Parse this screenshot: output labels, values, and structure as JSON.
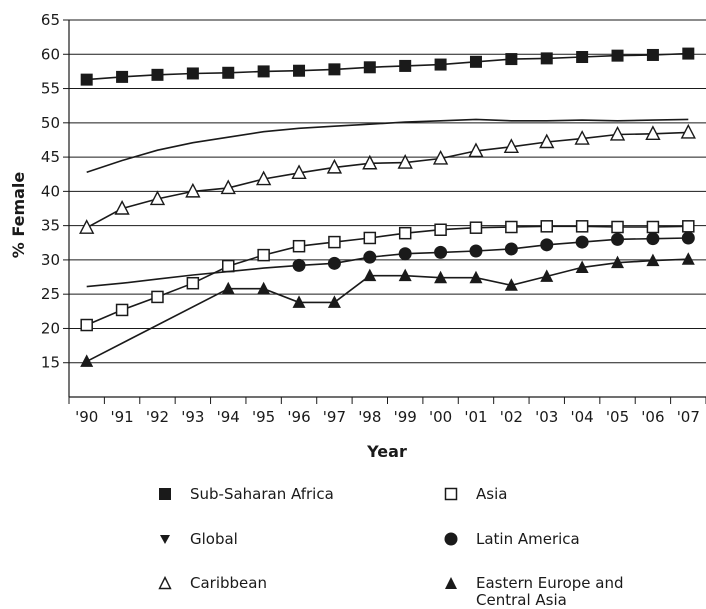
{
  "chart_data": {
    "type": "line",
    "xlabel": "Year",
    "ylabel": "% Female",
    "categories": [
      "'90",
      "'91",
      "'92",
      "'93",
      "'94",
      "'95",
      "'96",
      "'97",
      "'98",
      "'99",
      "'00",
      "'01",
      "'02",
      "'03",
      "'04",
      "'05",
      "'06",
      "'07"
    ],
    "ylim": [
      10,
      65
    ],
    "yticks": [
      15,
      20,
      25,
      30,
      35,
      40,
      45,
      50,
      55,
      60,
      65
    ],
    "grid": "horizontal",
    "legend_position": "bottom",
    "series": [
      {
        "name": "Sub-Saharan Africa",
        "marker": "filled-square",
        "values": [
          56.3,
          56.7,
          57.0,
          57.2,
          57.3,
          57.5,
          57.6,
          57.8,
          58.1,
          58.3,
          58.5,
          58.9,
          59.3,
          59.4,
          59.6,
          59.8,
          59.9,
          60.1
        ]
      },
      {
        "name": "Asia",
        "marker": "open-square",
        "values": [
          20.5,
          22.7,
          24.6,
          26.6,
          29.1,
          30.7,
          32.0,
          32.6,
          33.2,
          33.9,
          34.4,
          34.7,
          34.8,
          34.9,
          34.9,
          34.8,
          34.8,
          34.9
        ]
      },
      {
        "name": "Global",
        "marker": "none",
        "values": [
          42.8,
          44.5,
          46.0,
          47.1,
          47.9,
          48.7,
          49.2,
          49.5,
          49.8,
          50.1,
          50.3,
          50.5,
          50.3,
          50.3,
          50.4,
          50.3,
          50.4,
          50.5
        ]
      },
      {
        "name": "Latin America",
        "marker": "filled-circle",
        "values": [
          26.1,
          26.6,
          27.2,
          27.8,
          28.3,
          28.8,
          29.2,
          29.5,
          30.4,
          30.9,
          31.1,
          31.3,
          31.6,
          32.2,
          32.6,
          33.0,
          33.1,
          33.2
        ],
        "marked_from_index": 6
      },
      {
        "name": "Caribbean",
        "marker": "open-triangle",
        "values": [
          34.7,
          37.5,
          38.9,
          40.0,
          40.5,
          41.8,
          42.7,
          43.5,
          44.1,
          44.2,
          44.8,
          45.9,
          46.5,
          47.2,
          47.7,
          48.3,
          48.4,
          48.6
        ]
      },
      {
        "name": "Eastern Europe and Central Asia",
        "marker": "filled-triangle",
        "values": [
          15.2,
          null,
          null,
          null,
          25.8,
          25.8,
          23.8,
          23.8,
          27.7,
          27.7,
          27.4,
          27.4,
          26.3,
          27.6,
          28.9,
          29.6,
          29.9,
          30.1
        ]
      }
    ]
  },
  "legend": {
    "items": [
      {
        "label": "Sub-Saharan Africa",
        "marker": "filled-square"
      },
      {
        "label": "Asia",
        "marker": "open-square"
      },
      {
        "label": "Global",
        "marker": "filled-down-triangle"
      },
      {
        "label": "Latin America",
        "marker": "filled-circle"
      },
      {
        "label": "Caribbean",
        "marker": "open-triangle"
      },
      {
        "label": "Eastern Europe and\nCentral Asia",
        "marker": "filled-triangle"
      }
    ]
  }
}
